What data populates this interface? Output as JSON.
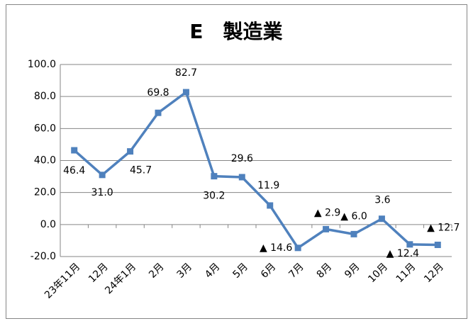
{
  "chart_data": {
    "type": "line",
    "title": "E　製造業",
    "categories": [
      "23年11月",
      "12月",
      "24年1月",
      "2月",
      "3月",
      "4月",
      "5月",
      "6月",
      "7月",
      "8月",
      "9月",
      "10月",
      "11月",
      "12月"
    ],
    "series": [
      {
        "color": "#4f81bd",
        "values": [
          46.4,
          31.0,
          45.7,
          69.8,
          82.7,
          30.2,
          29.6,
          11.9,
          -14.6,
          -2.9,
          -6.0,
          3.6,
          -12.4,
          -12.7
        ],
        "value_labels": [
          "46.4",
          "31.0",
          "45.7",
          "69.8",
          "82.7",
          "30.2",
          "29.6",
          "11.9",
          "▲ 14.6",
          "▲ 2.9",
          "▲ 6.0",
          "3.6",
          "▲ 12.4",
          "▲ 12.7"
        ]
      }
    ],
    "ylim": [
      -20,
      100
    ],
    "yticks": [
      {
        "value": -20,
        "label": "-20.0"
      },
      {
        "value": 0,
        "label": "0.0"
      },
      {
        "value": 20,
        "label": "20.0"
      },
      {
        "value": 40,
        "label": "40.0"
      },
      {
        "value": 60,
        "label": "60.0"
      },
      {
        "value": 80,
        "label": "80.0"
      },
      {
        "value": 100,
        "label": "100.0"
      }
    ],
    "grid": true
  }
}
